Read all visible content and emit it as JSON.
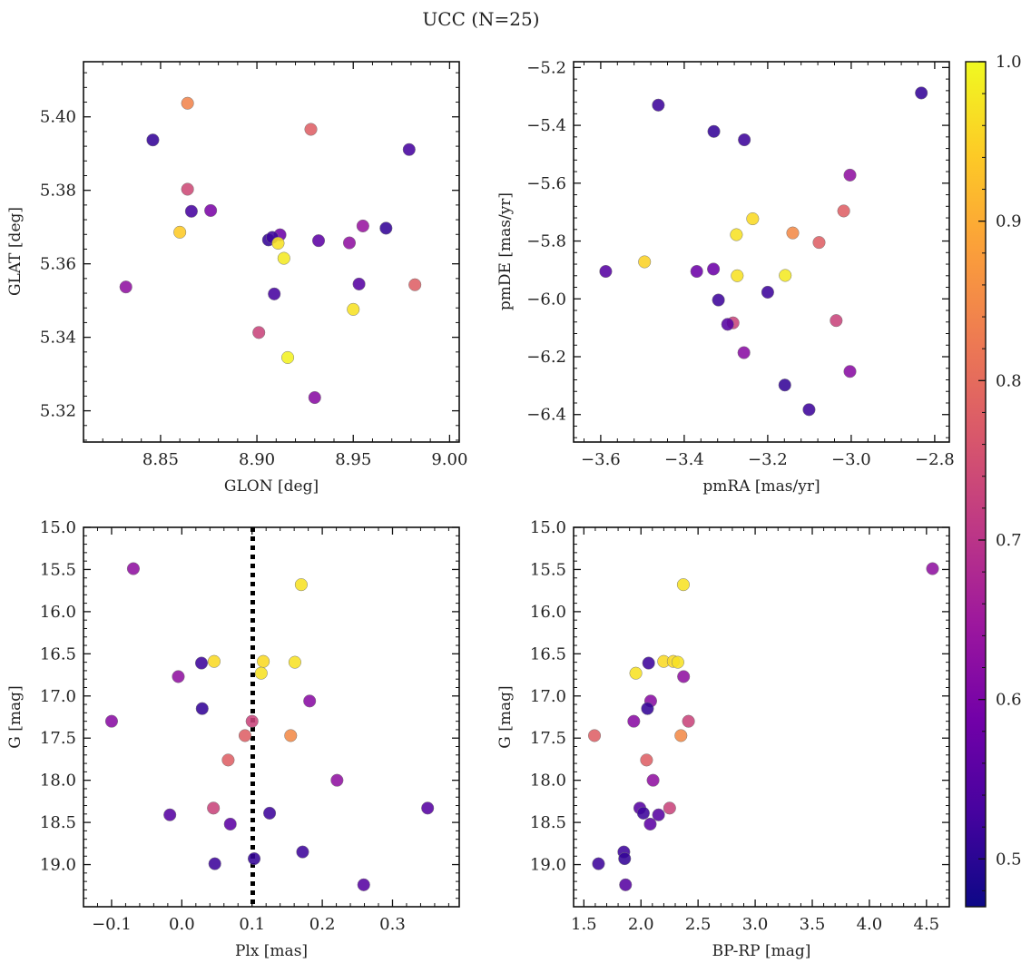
{
  "figure": {
    "title": "UCC (N=25)"
  },
  "colormap": {
    "name": "plasma",
    "stops": [
      "#0d0887",
      "#46039f",
      "#7201a8",
      "#9c179e",
      "#bd3786",
      "#d8576b",
      "#ed7953",
      "#fb9f3a",
      "#fdca26",
      "#f0f921"
    ],
    "domain": [
      0.47,
      1.0
    ],
    "ticks": [
      {
        "value": 0.5,
        "label": "0.5"
      },
      {
        "value": 0.6,
        "label": "0.6"
      },
      {
        "value": 0.7,
        "label": "0.7"
      },
      {
        "value": 0.8,
        "label": "0.8"
      },
      {
        "value": 0.9,
        "label": "0.9"
      },
      {
        "value": 1.0,
        "label": "1.0"
      }
    ]
  },
  "chart_data": [
    {
      "type": "scatter",
      "xlabel": "GLON [deg]",
      "ylabel": "GLAT [deg]",
      "xlim": [
        8.81,
        9.005
      ],
      "ylim": [
        5.3115,
        5.415
      ],
      "xticks": [
        {
          "value": 8.85,
          "label": "8.85"
        },
        {
          "value": 8.9,
          "label": "8.90"
        },
        {
          "value": 8.95,
          "label": "8.95"
        },
        {
          "value": 9.0,
          "label": "9.00"
        }
      ],
      "yticks": [
        {
          "value": 5.32,
          "label": "5.32"
        },
        {
          "value": 5.34,
          "label": "5.34"
        },
        {
          "value": 5.36,
          "label": "5.36"
        },
        {
          "value": 5.38,
          "label": "5.38"
        },
        {
          "value": 5.4,
          "label": "5.40"
        }
      ],
      "vline": null,
      "points": [
        {
          "x": 8.864,
          "y": 5.4037,
          "c": 0.84
        },
        {
          "x": 8.928,
          "y": 5.3966,
          "c": 0.78
        },
        {
          "x": 8.846,
          "y": 5.3937,
          "c": 0.51
        },
        {
          "x": 8.979,
          "y": 5.3911,
          "c": 0.53
        },
        {
          "x": 8.864,
          "y": 5.3803,
          "c": 0.74
        },
        {
          "x": 8.866,
          "y": 5.3743,
          "c": 0.53
        },
        {
          "x": 8.876,
          "y": 5.3745,
          "c": 0.6
        },
        {
          "x": 8.86,
          "y": 5.3686,
          "c": 0.94
        },
        {
          "x": 8.912,
          "y": 5.3679,
          "c": 0.58
        },
        {
          "x": 8.906,
          "y": 5.3665,
          "c": 0.51
        },
        {
          "x": 8.908,
          "y": 5.3672,
          "c": 0.52
        },
        {
          "x": 8.911,
          "y": 5.3656,
          "c": 0.97
        },
        {
          "x": 8.932,
          "y": 5.3663,
          "c": 0.56
        },
        {
          "x": 8.955,
          "y": 5.3703,
          "c": 0.64
        },
        {
          "x": 8.967,
          "y": 5.3697,
          "c": 0.51
        },
        {
          "x": 8.948,
          "y": 5.3657,
          "c": 0.63
        },
        {
          "x": 8.914,
          "y": 5.3615,
          "c": 0.98
        },
        {
          "x": 8.832,
          "y": 5.3537,
          "c": 0.63
        },
        {
          "x": 8.909,
          "y": 5.3518,
          "c": 0.53
        },
        {
          "x": 8.953,
          "y": 5.3545,
          "c": 0.55
        },
        {
          "x": 8.982,
          "y": 5.3543,
          "c": 0.78
        },
        {
          "x": 8.95,
          "y": 5.3476,
          "c": 0.97
        },
        {
          "x": 8.901,
          "y": 5.3413,
          "c": 0.73
        },
        {
          "x": 8.916,
          "y": 5.3345,
          "c": 0.99
        },
        {
          "x": 8.93,
          "y": 5.3236,
          "c": 0.62
        }
      ]
    },
    {
      "type": "scatter",
      "xlabel": "pmRA [mas/yr]",
      "ylabel": "pmDE [mas/yr]",
      "xlim": [
        -3.665,
        -2.765
      ],
      "ylim": [
        -6.495,
        -5.18
      ],
      "xticks": [
        {
          "value": -3.6,
          "label": "−3.6"
        },
        {
          "value": -3.4,
          "label": "−3.4"
        },
        {
          "value": -3.2,
          "label": "−3.2"
        },
        {
          "value": -3.0,
          "label": "−3.0"
        },
        {
          "value": -2.8,
          "label": "−2.8"
        }
      ],
      "yticks": [
        {
          "value": -6.4,
          "label": "−6.4"
        },
        {
          "value": -6.2,
          "label": "−6.2"
        },
        {
          "value": -6.0,
          "label": "−6.0"
        },
        {
          "value": -5.8,
          "label": "−5.8"
        },
        {
          "value": -5.6,
          "label": "−5.6"
        },
        {
          "value": -5.4,
          "label": "−5.4"
        },
        {
          "value": -5.2,
          "label": "−5.2"
        }
      ],
      "vline": null,
      "points": [
        {
          "x": -2.832,
          "y": -5.288,
          "c": 0.51
        },
        {
          "x": -3.462,
          "y": -5.33,
          "c": 0.52
        },
        {
          "x": -3.329,
          "y": -5.421,
          "c": 0.51
        },
        {
          "x": -3.256,
          "y": -5.45,
          "c": 0.52
        },
        {
          "x": -3.003,
          "y": -5.572,
          "c": 0.63
        },
        {
          "x": -3.018,
          "y": -5.696,
          "c": 0.78
        },
        {
          "x": -3.236,
          "y": -5.723,
          "c": 0.96
        },
        {
          "x": -3.14,
          "y": -5.772,
          "c": 0.85
        },
        {
          "x": -3.275,
          "y": -5.778,
          "c": 0.97
        },
        {
          "x": -3.077,
          "y": -5.805,
          "c": 0.78
        },
        {
          "x": -3.495,
          "y": -5.872,
          "c": 0.95
        },
        {
          "x": -3.588,
          "y": -5.905,
          "c": 0.55
        },
        {
          "x": -3.37,
          "y": -5.905,
          "c": 0.58
        },
        {
          "x": -3.33,
          "y": -5.897,
          "c": 0.58
        },
        {
          "x": -3.273,
          "y": -5.92,
          "c": 0.97
        },
        {
          "x": -3.158,
          "y": -5.919,
          "c": 0.98
        },
        {
          "x": -3.2,
          "y": -5.977,
          "c": 0.52
        },
        {
          "x": -3.318,
          "y": -6.004,
          "c": 0.52
        },
        {
          "x": -3.036,
          "y": -6.075,
          "c": 0.73
        },
        {
          "x": -3.283,
          "y": -6.083,
          "c": 0.73
        },
        {
          "x": -3.296,
          "y": -6.088,
          "c": 0.55
        },
        {
          "x": -3.257,
          "y": -6.186,
          "c": 0.62
        },
        {
          "x": -3.003,
          "y": -6.251,
          "c": 0.62
        },
        {
          "x": -3.159,
          "y": -6.298,
          "c": 0.51
        },
        {
          "x": -3.101,
          "y": -6.383,
          "c": 0.52
        }
      ]
    },
    {
      "type": "scatter",
      "xlabel": "Plx [mas]",
      "ylabel": "G [mag]",
      "xlim": [
        -0.14,
        0.395
      ],
      "ylim": [
        19.5,
        15.0
      ],
      "y_inverted": true,
      "xticks": [
        {
          "value": -0.1,
          "label": "−0.1"
        },
        {
          "value": 0.0,
          "label": "0.0"
        },
        {
          "value": 0.1,
          "label": "0.1"
        },
        {
          "value": 0.2,
          "label": "0.2"
        },
        {
          "value": 0.3,
          "label": "0.3"
        }
      ],
      "yticks": [
        {
          "value": 15.0,
          "label": "15.0"
        },
        {
          "value": 15.5,
          "label": "15.5"
        },
        {
          "value": 16.0,
          "label": "16.0"
        },
        {
          "value": 16.5,
          "label": "16.5"
        },
        {
          "value": 17.0,
          "label": "17.0"
        },
        {
          "value": 17.5,
          "label": "17.5"
        },
        {
          "value": 18.0,
          "label": "18.0"
        },
        {
          "value": 18.5,
          "label": "18.5"
        },
        {
          "value": 19.0,
          "label": "19.0"
        }
      ],
      "vline": {
        "x": 0.101,
        "style": "dotted"
      },
      "points": [
        {
          "x": -0.069,
          "y": 15.49,
          "c": 0.63
        },
        {
          "x": 0.17,
          "y": 15.68,
          "c": 0.97
        },
        {
          "x": 0.046,
          "y": 16.59,
          "c": 0.96
        },
        {
          "x": 0.116,
          "y": 16.59,
          "c": 0.96
        },
        {
          "x": 0.161,
          "y": 16.6,
          "c": 0.97
        },
        {
          "x": 0.028,
          "y": 16.61,
          "c": 0.52
        },
        {
          "x": 0.113,
          "y": 16.73,
          "c": 0.97
        },
        {
          "x": -0.005,
          "y": 16.77,
          "c": 0.63
        },
        {
          "x": 0.182,
          "y": 17.06,
          "c": 0.62
        },
        {
          "x": 0.029,
          "y": 17.15,
          "c": 0.51
        },
        {
          "x": -0.1,
          "y": 17.3,
          "c": 0.62
        },
        {
          "x": 0.1,
          "y": 17.3,
          "c": 0.73
        },
        {
          "x": 0.09,
          "y": 17.47,
          "c": 0.78
        },
        {
          "x": 0.155,
          "y": 17.47,
          "c": 0.85
        },
        {
          "x": 0.066,
          "y": 17.76,
          "c": 0.78
        },
        {
          "x": 0.221,
          "y": 18.0,
          "c": 0.63
        },
        {
          "x": 0.045,
          "y": 18.33,
          "c": 0.73
        },
        {
          "x": 0.35,
          "y": 18.33,
          "c": 0.55
        },
        {
          "x": -0.017,
          "y": 18.41,
          "c": 0.55
        },
        {
          "x": 0.125,
          "y": 18.39,
          "c": 0.52
        },
        {
          "x": 0.069,
          "y": 18.52,
          "c": 0.56
        },
        {
          "x": 0.172,
          "y": 18.85,
          "c": 0.52
        },
        {
          "x": 0.103,
          "y": 18.93,
          "c": 0.51
        },
        {
          "x": 0.047,
          "y": 18.99,
          "c": 0.52
        },
        {
          "x": 0.259,
          "y": 19.24,
          "c": 0.55
        }
      ]
    },
    {
      "type": "scatter",
      "xlabel": "BP-RP [mag]",
      "ylabel": "G [mag]",
      "xlim": [
        1.41,
        4.7
      ],
      "ylim": [
        19.5,
        15.0
      ],
      "y_inverted": true,
      "xticks": [
        {
          "value": 1.5,
          "label": "1.5"
        },
        {
          "value": 2.0,
          "label": "2.0"
        },
        {
          "value": 2.5,
          "label": "2.5"
        },
        {
          "value": 3.0,
          "label": "3.0"
        },
        {
          "value": 3.5,
          "label": "3.5"
        },
        {
          "value": 4.0,
          "label": "4.0"
        },
        {
          "value": 4.5,
          "label": "4.5"
        }
      ],
      "yticks": [
        {
          "value": 15.0,
          "label": "15.0"
        },
        {
          "value": 15.5,
          "label": "15.5"
        },
        {
          "value": 16.0,
          "label": "16.0"
        },
        {
          "value": 16.5,
          "label": "16.5"
        },
        {
          "value": 17.0,
          "label": "17.0"
        },
        {
          "value": 17.5,
          "label": "17.5"
        },
        {
          "value": 18.0,
          "label": "18.0"
        },
        {
          "value": 18.5,
          "label": "18.5"
        },
        {
          "value": 19.0,
          "label": "19.0"
        }
      ],
      "vline": null,
      "points": [
        {
          "x": 4.553,
          "y": 15.49,
          "c": 0.63
        },
        {
          "x": 2.371,
          "y": 15.68,
          "c": 0.97
        },
        {
          "x": 2.067,
          "y": 16.61,
          "c": 0.52
        },
        {
          "x": 2.199,
          "y": 16.59,
          "c": 0.96
        },
        {
          "x": 2.283,
          "y": 16.59,
          "c": 0.96
        },
        {
          "x": 2.323,
          "y": 16.6,
          "c": 0.97
        },
        {
          "x": 1.955,
          "y": 16.73,
          "c": 0.97
        },
        {
          "x": 2.373,
          "y": 16.77,
          "c": 0.63
        },
        {
          "x": 2.085,
          "y": 17.06,
          "c": 0.62
        },
        {
          "x": 2.057,
          "y": 17.15,
          "c": 0.51
        },
        {
          "x": 1.937,
          "y": 17.3,
          "c": 0.62
        },
        {
          "x": 2.416,
          "y": 17.3,
          "c": 0.73
        },
        {
          "x": 1.593,
          "y": 17.47,
          "c": 0.78
        },
        {
          "x": 2.35,
          "y": 17.47,
          "c": 0.85
        },
        {
          "x": 2.049,
          "y": 17.76,
          "c": 0.78
        },
        {
          "x": 2.106,
          "y": 18.0,
          "c": 0.63
        },
        {
          "x": 2.251,
          "y": 18.33,
          "c": 0.73
        },
        {
          "x": 1.99,
          "y": 18.33,
          "c": 0.55
        },
        {
          "x": 2.021,
          "y": 18.39,
          "c": 0.52
        },
        {
          "x": 2.154,
          "y": 18.41,
          "c": 0.55
        },
        {
          "x": 2.081,
          "y": 18.52,
          "c": 0.56
        },
        {
          "x": 1.85,
          "y": 18.85,
          "c": 0.52
        },
        {
          "x": 1.857,
          "y": 18.93,
          "c": 0.51
        },
        {
          "x": 1.628,
          "y": 18.99,
          "c": 0.52
        },
        {
          "x": 1.865,
          "y": 19.24,
          "c": 0.55
        }
      ]
    }
  ]
}
